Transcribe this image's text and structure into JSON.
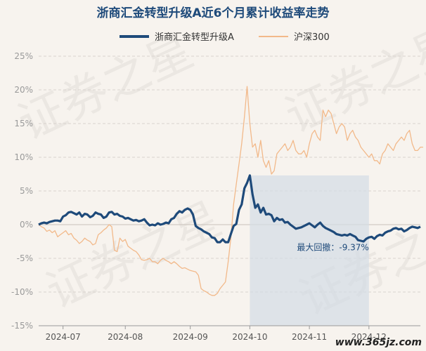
{
  "chart_data": {
    "type": "line",
    "title": "浙商汇金转型升级A近6个月累计收益率走势",
    "x_ticks": [
      "2024-07",
      "2024-08",
      "2024-09",
      "2024-10",
      "2024-11",
      "2024-12"
    ],
    "y_ticks": [
      "25%",
      "20%",
      "15%",
      "10%",
      "5%",
      "0%",
      "-5%",
      "-10%",
      "-15%"
    ],
    "ylim": [
      -15,
      25
    ],
    "grid": true,
    "legend_position": "top-center",
    "series": [
      {
        "name": "浙商汇金转型升级A",
        "color": "#1e4a7a",
        "values": [
          0.0,
          0.2,
          0.3,
          0.2,
          0.4,
          0.5,
          0.6,
          0.6,
          0.5,
          1.2,
          1.4,
          1.8,
          1.9,
          1.7,
          1.5,
          1.8,
          1.2,
          1.6,
          1.5,
          1.1,
          1.3,
          1.8,
          1.6,
          1.5,
          1.0,
          1.2,
          1.8,
          1.9,
          1.5,
          1.6,
          1.3,
          1.2,
          0.9,
          1.0,
          0.8,
          0.6,
          0.7,
          0.5,
          0.6,
          0.8,
          0.3,
          -0.1,
          0.0,
          -0.1,
          0.2,
          0.0,
          0.1,
          0.3,
          0.2,
          0.8,
          1.0,
          1.6,
          2.0,
          1.8,
          2.2,
          2.4,
          2.2,
          1.5,
          -0.2,
          -0.5,
          -0.7,
          -1.0,
          -1.2,
          -1.4,
          -1.9,
          -2.0,
          -2.6,
          -2.6,
          -2.2,
          -2.6,
          -2.6,
          -1.4,
          -0.2,
          0.1,
          2.2,
          3.0,
          5.4,
          6.2,
          7.3,
          4.5,
          2.5,
          3.0,
          1.8,
          2.5,
          1.5,
          1.6,
          1.4,
          0.5,
          1.0,
          0.7,
          0.8,
          0.3,
          0.4,
          0.0,
          -0.3,
          -0.6,
          -0.5,
          -0.4,
          -0.2,
          0.0,
          0.2,
          -0.1,
          -0.4,
          0.0,
          0.3,
          -0.2,
          -0.5,
          -0.7,
          -0.9,
          -1.1,
          -1.4,
          -1.5,
          -1.6,
          -1.5,
          -1.6,
          -1.4,
          -1.6,
          -1.8,
          -2.3,
          -2.4,
          -2.5,
          -2.1,
          -1.9,
          -1.8,
          -2.1,
          -1.7,
          -1.5,
          -1.6,
          -1.2,
          -1.0,
          -0.9,
          -0.6,
          -0.5,
          -0.7,
          -0.6,
          -1.0,
          -0.8,
          -0.5,
          -0.3,
          -0.4,
          -0.5,
          -0.3
        ]
      },
      {
        "name": "沪深300",
        "color": "#f2b98a",
        "values": [
          0.0,
          -0.3,
          -0.5,
          -1.0,
          -0.8,
          -1.2,
          -0.9,
          -1.8,
          -1.5,
          -1.2,
          -0.9,
          -1.5,
          -1.3,
          -2.0,
          -2.3,
          -2.8,
          -2.5,
          -2.0,
          -2.3,
          -2.5,
          -3.0,
          -2.8,
          -1.5,
          -1.2,
          -0.8,
          -0.5,
          0.0,
          -0.3,
          -3.8,
          -4.0,
          -2.0,
          -2.5,
          -2.2,
          -3.2,
          -3.5,
          -3.8,
          -4.0,
          -4.5,
          -5.2,
          -5.3,
          -5.2,
          -5.0,
          -5.5,
          -5.5,
          -5.8,
          -5.3,
          -5.0,
          -5.3,
          -5.5,
          -5.8,
          -5.5,
          -5.8,
          -6.2,
          -6.5,
          -6.4,
          -6.6,
          -6.8,
          -6.9,
          -7.0,
          -7.5,
          -9.5,
          -9.8,
          -10.0,
          -10.3,
          -10.5,
          -10.5,
          -10.2,
          -9.5,
          -9.0,
          -8.5,
          -5.5,
          -2.0,
          3.0,
          6.0,
          9.0,
          12.0,
          16.0,
          20.5,
          15.0,
          11.5,
          12.0,
          10.0,
          12.5,
          9.5,
          8.5,
          9.5,
          7.5,
          8.0,
          10.5,
          11.0,
          11.5,
          12.0,
          11.0,
          11.5,
          12.5,
          11.0,
          10.5,
          10.5,
          11.0,
          10.0,
          12.0,
          13.5,
          14.0,
          13.0,
          12.5,
          17.0,
          16.0,
          17.0,
          16.5,
          15.0,
          13.5,
          14.5,
          15.0,
          14.5,
          12.5,
          13.5,
          14.0,
          13.0,
          12.5,
          11.5,
          11.0,
          10.5,
          10.0,
          10.5,
          9.5,
          9.5,
          9.0,
          10.5,
          11.0,
          12.0,
          11.5,
          11.0,
          12.0,
          12.5,
          13.0,
          12.5,
          13.5,
          14.0,
          12.0,
          11.0,
          11.0,
          11.5,
          11.5
        ]
      }
    ],
    "max_drawdown_label": "最大回撤：-9.37%",
    "max_drawdown": {
      "start_index": 78,
      "end_index": 122
    }
  },
  "watermark": "证券之星",
  "site_label": "www.365jz.com",
  "colors": {
    "background": "#f7f3ee",
    "grid": "#d8d3cd",
    "drawdown": "#d3dbe5"
  }
}
